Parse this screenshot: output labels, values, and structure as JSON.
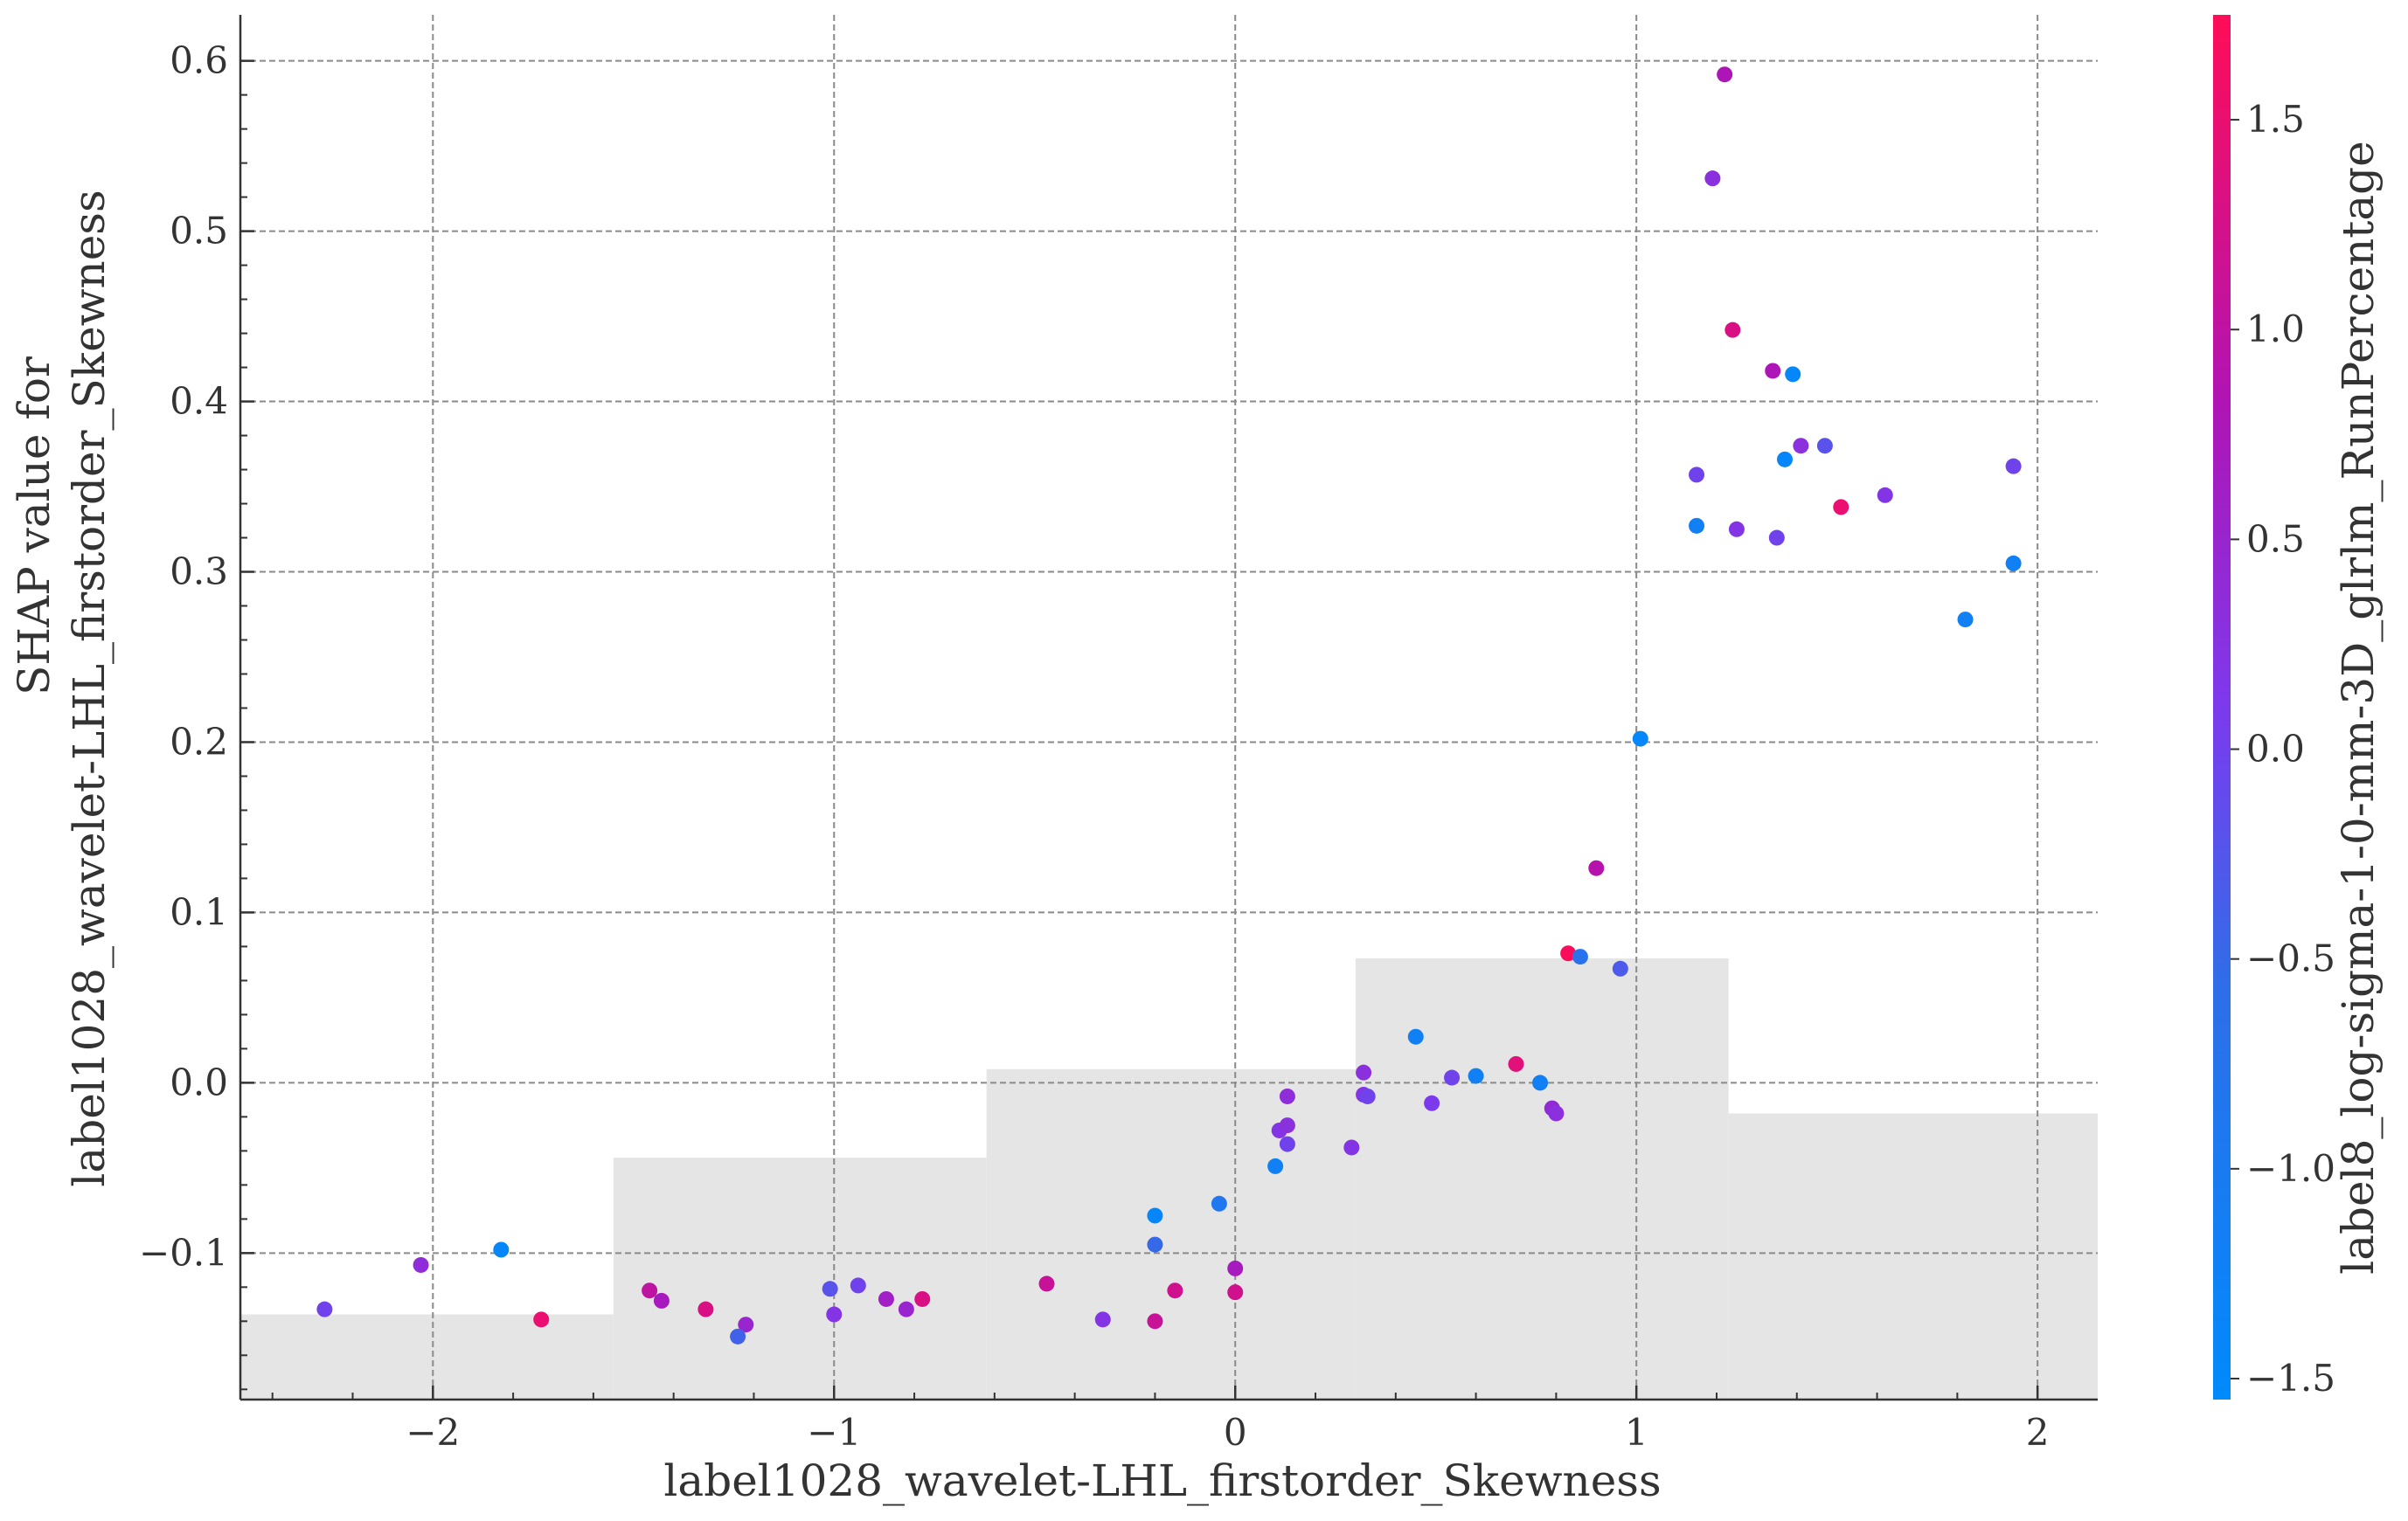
{
  "chart_data": {
    "type": "scatter",
    "xlabel": "label1028_wavelet-LHL_firstorder_Skewness",
    "ylabel_line1": "SHAP value for",
    "ylabel_line2": "label1028_wavelet-LHL_firstorder_Skewness",
    "colorbar_label": "label8_log-sigma-1-0-mm-3D_glrlm_RunPercentage",
    "xlim": [
      -2.48,
      2.15
    ],
    "ylim": [
      -0.186,
      0.627
    ],
    "x_ticks": [
      -2,
      -1,
      0,
      1,
      2
    ],
    "x_tick_labels": [
      "−2",
      "−1",
      "0",
      "1",
      "2"
    ],
    "y_ticks": [
      -0.1,
      0.0,
      0.1,
      0.2,
      0.3,
      0.4,
      0.5,
      0.6
    ],
    "y_tick_labels": [
      "−0.1",
      "0.0",
      "0.1",
      "0.2",
      "0.3",
      "0.4",
      "0.5",
      "0.6"
    ],
    "grid": true,
    "colorbar": {
      "range": [
        -1.55,
        1.75
      ],
      "ticks": [
        -1.5,
        -1.0,
        -0.5,
        0.0,
        0.5,
        1.0,
        1.5
      ],
      "tick_labels": [
        "−1.5",
        "−1.0",
        "−0.5",
        "0.0",
        "0.5",
        "1.0",
        "1.5"
      ],
      "color_low": "#1e88e5",
      "color_mid": "#7c3aed",
      "color_high": "#ff0d57"
    },
    "histogram_steps": {
      "edges": [
        -2.48,
        -1.55,
        -0.62,
        0.3,
        1.23,
        2.15
      ],
      "heights": [
        -0.136,
        -0.044,
        0.008,
        0.073,
        -0.018
      ],
      "color": "#e5e5e5"
    },
    "points": [
      {
        "x": -2.27,
        "y": -0.133,
        "c": 0.0
      },
      {
        "x": -2.03,
        "y": -0.107,
        "c": 0.35
      },
      {
        "x": -1.83,
        "y": -0.098,
        "c": -1.45
      },
      {
        "x": -1.73,
        "y": -0.139,
        "c": 1.5
      },
      {
        "x": -1.46,
        "y": -0.122,
        "c": 1.0
      },
      {
        "x": -1.43,
        "y": -0.128,
        "c": 0.7
      },
      {
        "x": -1.32,
        "y": -0.133,
        "c": 1.3
      },
      {
        "x": -1.22,
        "y": -0.142,
        "c": 0.5
      },
      {
        "x": -1.24,
        "y": -0.149,
        "c": -0.4
      },
      {
        "x": -1.01,
        "y": -0.121,
        "c": -0.2
      },
      {
        "x": -1.0,
        "y": -0.136,
        "c": 0.2
      },
      {
        "x": -0.94,
        "y": -0.119,
        "c": 0.0
      },
      {
        "x": -0.87,
        "y": -0.127,
        "c": 0.6
      },
      {
        "x": -0.82,
        "y": -0.133,
        "c": 0.5
      },
      {
        "x": -0.78,
        "y": -0.127,
        "c": 1.3
      },
      {
        "x": -0.47,
        "y": -0.118,
        "c": 1.1
      },
      {
        "x": -0.33,
        "y": -0.139,
        "c": 0.2
      },
      {
        "x": -0.2,
        "y": -0.14,
        "c": 1.1
      },
      {
        "x": -0.2,
        "y": -0.078,
        "c": -1.45
      },
      {
        "x": -0.2,
        "y": -0.095,
        "c": -0.5
      },
      {
        "x": -0.15,
        "y": -0.122,
        "c": 1.2
      },
      {
        "x": -0.04,
        "y": -0.071,
        "c": -0.9
      },
      {
        "x": 0.0,
        "y": -0.109,
        "c": 0.7
      },
      {
        "x": 0.0,
        "y": -0.123,
        "c": 1.2
      },
      {
        "x": 0.1,
        "y": -0.049,
        "c": -1.2
      },
      {
        "x": 0.11,
        "y": -0.028,
        "c": 0.2
      },
      {
        "x": 0.13,
        "y": -0.036,
        "c": 0.0
      },
      {
        "x": 0.13,
        "y": -0.025,
        "c": 0.3
      },
      {
        "x": 0.13,
        "y": -0.008,
        "c": 0.35
      },
      {
        "x": 0.29,
        "y": -0.038,
        "c": 0.2
      },
      {
        "x": 0.32,
        "y": 0.006,
        "c": 0.3
      },
      {
        "x": 0.32,
        "y": -0.007,
        "c": 0.2
      },
      {
        "x": 0.33,
        "y": -0.008,
        "c": 0.0
      },
      {
        "x": 0.45,
        "y": 0.027,
        "c": -1.2
      },
      {
        "x": 0.49,
        "y": -0.012,
        "c": 0.1
      },
      {
        "x": 0.54,
        "y": 0.003,
        "c": 0.0
      },
      {
        "x": 0.6,
        "y": 0.004,
        "c": -1.2
      },
      {
        "x": 0.7,
        "y": 0.011,
        "c": 1.4
      },
      {
        "x": 0.76,
        "y": 0.0,
        "c": -1.2
      },
      {
        "x": 0.79,
        "y": -0.015,
        "c": 0.4
      },
      {
        "x": 0.8,
        "y": -0.018,
        "c": 0.3
      },
      {
        "x": 0.83,
        "y": 0.076,
        "c": 1.7
      },
      {
        "x": 0.86,
        "y": 0.074,
        "c": -0.7
      },
      {
        "x": 0.9,
        "y": 0.126,
        "c": 0.9
      },
      {
        "x": 0.96,
        "y": 0.067,
        "c": -0.3
      },
      {
        "x": 1.01,
        "y": 0.202,
        "c": -1.45
      },
      {
        "x": 1.15,
        "y": 0.357,
        "c": 0.0
      },
      {
        "x": 1.15,
        "y": 0.327,
        "c": -1.2
      },
      {
        "x": 1.19,
        "y": 0.531,
        "c": 0.3
      },
      {
        "x": 1.22,
        "y": 0.592,
        "c": 0.8
      },
      {
        "x": 1.24,
        "y": 0.442,
        "c": 1.3
      },
      {
        "x": 1.25,
        "y": 0.325,
        "c": 0.2
      },
      {
        "x": 1.34,
        "y": 0.418,
        "c": 0.8
      },
      {
        "x": 1.35,
        "y": 0.32,
        "c": 0.0
      },
      {
        "x": 1.37,
        "y": 0.366,
        "c": -1.45
      },
      {
        "x": 1.39,
        "y": 0.416,
        "c": -1.45
      },
      {
        "x": 1.41,
        "y": 0.374,
        "c": 0.3
      },
      {
        "x": 1.47,
        "y": 0.374,
        "c": -0.2
      },
      {
        "x": 1.51,
        "y": 0.338,
        "c": 1.5
      },
      {
        "x": 1.62,
        "y": 0.345,
        "c": 0.2
      },
      {
        "x": 1.82,
        "y": 0.272,
        "c": -1.2
      },
      {
        "x": 1.94,
        "y": 0.362,
        "c": 0.0
      },
      {
        "x": 1.94,
        "y": 0.305,
        "c": -1.2
      }
    ]
  }
}
